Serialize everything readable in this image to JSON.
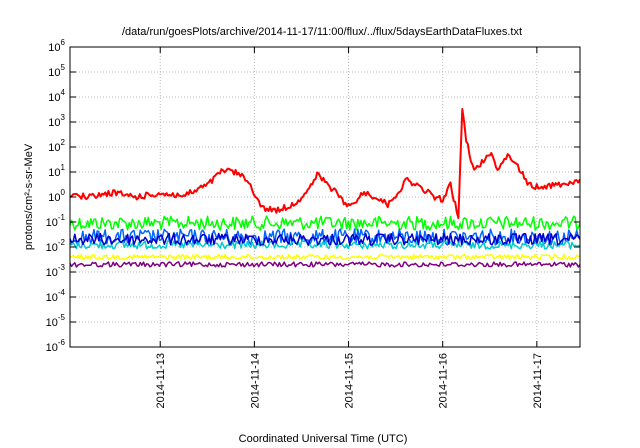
{
  "chart_data": {
    "type": "line",
    "title": "/data/run/goesPlots/archive/2014-11-17/11:00/flux/../flux/5daysEarthDataFluxes.txt",
    "xlabel": "Coordinated Universal Time (UTC)",
    "ylabel": "protons/cm²-s-sr-MeV",
    "y_scale": "log",
    "ylim": [
      1e-06,
      1000000.0
    ],
    "xlim": [
      "2014-11-12T01:00",
      "2014-11-17T11:00"
    ],
    "grid": true,
    "y_ticks": [
      {
        "base": "10",
        "exp": "-6",
        "value": 1e-06
      },
      {
        "base": "10",
        "exp": "-5",
        "value": 1e-05
      },
      {
        "base": "10",
        "exp": "-4",
        "value": 0.0001
      },
      {
        "base": "10",
        "exp": "-3",
        "value": 0.001
      },
      {
        "base": "10",
        "exp": "-2",
        "value": 0.01
      },
      {
        "base": "10",
        "exp": "-1",
        "value": 0.1
      },
      {
        "base": "10",
        "exp": "0",
        "value": 1
      },
      {
        "base": "10",
        "exp": "1",
        "value": 10
      },
      {
        "base": "10",
        "exp": "2",
        "value": 100
      },
      {
        "base": "10",
        "exp": "3",
        "value": 1000
      },
      {
        "base": "10",
        "exp": "4",
        "value": 10000
      },
      {
        "base": "10",
        "exp": "5",
        "value": 100000
      },
      {
        "base": "10",
        "exp": "6",
        "value": 1000000
      }
    ],
    "x_ticks": [
      "2014-11-13",
      "2014-11-14",
      "2014-11-15",
      "2014-11-16",
      "2014-11-17"
    ],
    "series": [
      {
        "color": "#ff0000",
        "points": [
          [
            "2014-11-12T01:00",
            1.2
          ],
          [
            "2014-11-12T06:00",
            1.0
          ],
          [
            "2014-11-12T12:00",
            1.5
          ],
          [
            "2014-11-12T18:00",
            1.0
          ],
          [
            "2014-11-13T00:00",
            1.4
          ],
          [
            "2014-11-13T06:00",
            1.1
          ],
          [
            "2014-11-13T12:00",
            3.0
          ],
          [
            "2014-11-13T16:00",
            12.0
          ],
          [
            "2014-11-13T20:00",
            9.0
          ],
          [
            "2014-11-13T23:00",
            3.0
          ],
          [
            "2014-11-14T02:00",
            0.35
          ],
          [
            "2014-11-14T06:00",
            0.3
          ],
          [
            "2014-11-14T10:00",
            0.5
          ],
          [
            "2014-11-14T14:00",
            2.0
          ],
          [
            "2014-11-14T16:00",
            8.0
          ],
          [
            "2014-11-14T20:00",
            2.0
          ],
          [
            "2014-11-15T00:00",
            0.4
          ],
          [
            "2014-11-15T04:00",
            1.5
          ],
          [
            "2014-11-15T07:00",
            1.0
          ],
          [
            "2014-11-15T10:00",
            0.5
          ],
          [
            "2014-11-15T12:00",
            1.2
          ],
          [
            "2014-11-15T15:00",
            5.0
          ],
          [
            "2014-11-15T19:00",
            2.0
          ],
          [
            "2014-11-15T22:00",
            1.0
          ],
          [
            "2014-11-16T00:00",
            0.8
          ],
          [
            "2014-11-16T02:00",
            3.0
          ],
          [
            "2014-11-16T04:00",
            0.15
          ],
          [
            "2014-11-16T05:00",
            3000
          ],
          [
            "2014-11-16T06:00",
            200
          ],
          [
            "2014-11-16T08:00",
            10
          ],
          [
            "2014-11-16T12:00",
            60
          ],
          [
            "2014-11-16T14:00",
            15
          ],
          [
            "2014-11-16T17:00",
            50
          ],
          [
            "2014-11-16T20:00",
            10
          ],
          [
            "2014-11-16T22:00",
            3.0
          ],
          [
            "2014-11-17T00:00",
            2.5
          ],
          [
            "2014-11-17T04:00",
            3.0
          ],
          [
            "2014-11-17T08:00",
            3.5
          ],
          [
            "2014-11-17T11:00",
            5.0
          ]
        ]
      },
      {
        "color": "#00ff00",
        "points": [
          [
            "2014-11-12T01:00",
            0.09
          ],
          [
            "2014-11-17T11:00",
            0.09
          ]
        ]
      },
      {
        "color": "#0066ff",
        "points": [
          [
            "2014-11-12T01:00",
            0.025
          ],
          [
            "2014-11-17T11:00",
            0.025
          ]
        ]
      },
      {
        "color": "#0000cc",
        "points": [
          [
            "2014-11-12T01:00",
            0.02
          ],
          [
            "2014-11-17T11:00",
            0.02
          ]
        ]
      },
      {
        "color": "#00cccc",
        "points": [
          [
            "2014-11-12T01:00",
            0.012
          ],
          [
            "2014-11-17T11:00",
            0.012
          ]
        ]
      },
      {
        "color": "#ffff00",
        "points": [
          [
            "2014-11-12T01:00",
            0.004
          ],
          [
            "2014-11-17T11:00",
            0.004
          ]
        ]
      },
      {
        "color": "#800080",
        "points": [
          [
            "2014-11-12T01:00",
            0.002
          ],
          [
            "2014-11-17T11:00",
            0.002
          ]
        ]
      }
    ]
  }
}
